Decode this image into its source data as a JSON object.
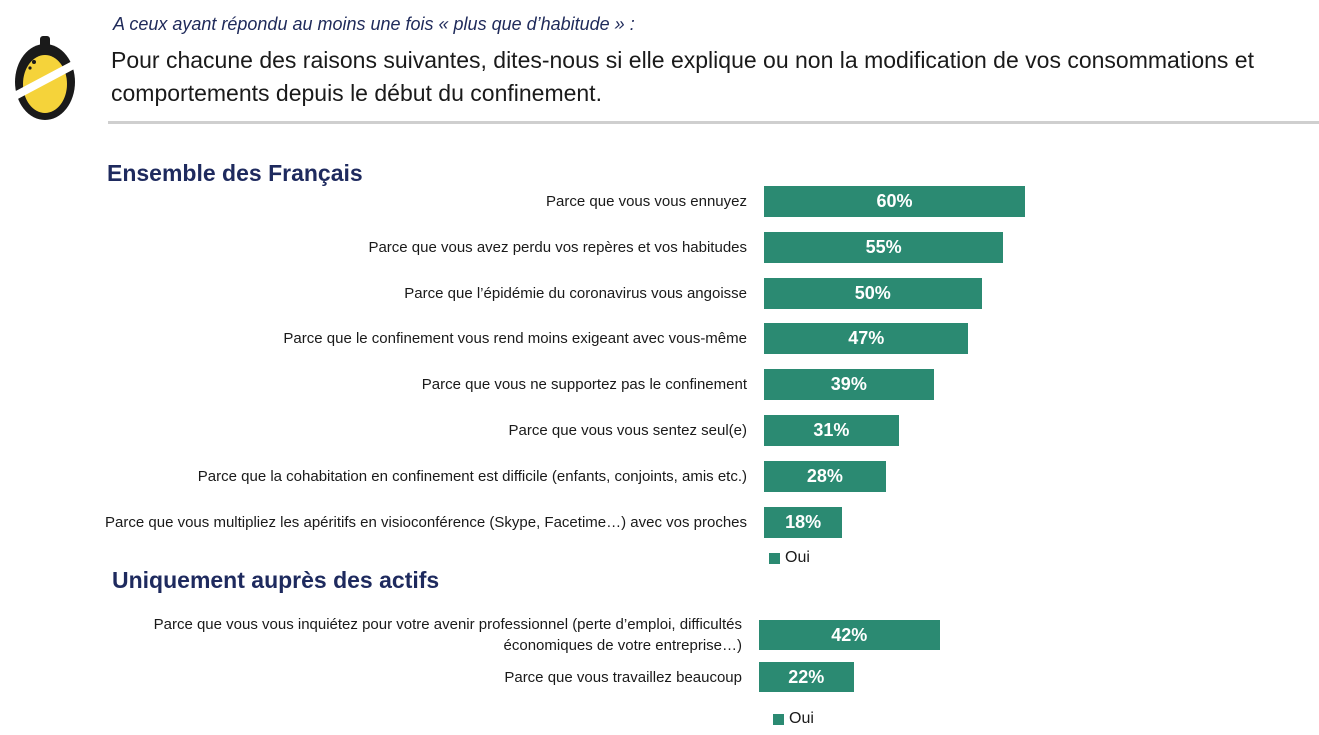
{
  "header": {
    "subtitle": "A ceux ayant répondu au moins une fois « plus que d’habitude » :",
    "question": "Pour chacune des raisons suivantes, dites-nous si elle explique ou non la modification de vos consommations et comportements depuis le début du confinement."
  },
  "colors": {
    "bar": "#2b8a72",
    "title": "#1e2a5e"
  },
  "chart_data": [
    {
      "type": "bar",
      "orientation": "horizontal",
      "title": "Ensemble des Français",
      "categories": [
        "Parce que vous vous ennuyez",
        "Parce que vous avez perdu vos repères et vos habitudes",
        "Parce que l’épidémie du coronavirus vous angoisse",
        "Parce que le confinement vous rend moins exigeant avec vous-même",
        "Parce que vous ne supportez pas le confinement",
        "Parce que vous vous sentez seul(e)",
        "Parce que la cohabitation en confinement est difficile (enfants, conjoints, amis etc.)",
        "Parce que vous multipliez les apéritifs en visioconférence (Skype, Facetime…) avec vos proches"
      ],
      "series": [
        {
          "name": "Oui",
          "values": [
            60,
            55,
            50,
            47,
            39,
            31,
            28,
            18
          ]
        }
      ],
      "value_labels": [
        "60%",
        "55%",
        "50%",
        "47%",
        "39%",
        "31%",
        "28%",
        "18%"
      ],
      "legend": "bottom"
    },
    {
      "type": "bar",
      "orientation": "horizontal",
      "title": "Uniquement auprès des actifs",
      "categories": [
        "Parce que vous vous inquiétez pour votre avenir professionnel (perte d’emploi, difficultés économiques de votre entreprise…)",
        "Parce que vous travaillez beaucoup"
      ],
      "series": [
        {
          "name": "Oui",
          "values": [
            42,
            22
          ]
        }
      ],
      "value_labels": [
        "42%",
        "22%"
      ],
      "legend": "bottom"
    }
  ]
}
